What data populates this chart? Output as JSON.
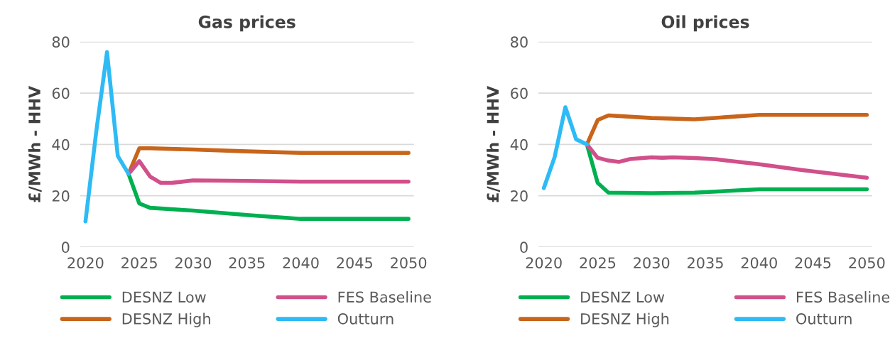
{
  "chart_data": [
    {
      "type": "line",
      "title": "Gas prices",
      "ylabel": "£/MWh - HHV",
      "xlim": [
        2019.5,
        2050.5
      ],
      "xticks": [
        2020,
        2025,
        2030,
        2035,
        2040,
        2045,
        2050
      ],
      "ylim": [
        0,
        80
      ],
      "yticks": [
        0,
        20,
        40,
        60,
        80
      ],
      "grid": "y",
      "legend": "bottom",
      "series": [
        {
          "name": "DESNZ Low",
          "color": "#00b050",
          "x": [
            2024,
            2025,
            2026,
            2030,
            2035,
            2040,
            2050
          ],
          "values": [
            28.5,
            17,
            15.3,
            14.2,
            12.5,
            11,
            11
          ]
        },
        {
          "name": "DESNZ High",
          "color": "#c8651b",
          "x": [
            2024,
            2025,
            2026,
            2030,
            2035,
            2040,
            2050
          ],
          "values": [
            28.5,
            38.5,
            38.5,
            38,
            37.3,
            36.7,
            36.7
          ]
        },
        {
          "name": "FES Baseline",
          "color": "#d1508a",
          "x": [
            2024,
            2025,
            2026,
            2027,
            2028,
            2030,
            2035,
            2040,
            2050
          ],
          "values": [
            28.5,
            33.5,
            27.5,
            25,
            25,
            26,
            25.8,
            25.5,
            25.5
          ]
        },
        {
          "name": "Outturn",
          "color": "#2ebbf5",
          "x": [
            2020,
            2021,
            2022,
            2023,
            2024
          ],
          "values": [
            10,
            45,
            76,
            35.5,
            28.5
          ]
        }
      ]
    },
    {
      "type": "line",
      "title": "Oil prices",
      "ylabel": "£/MWh - HHV",
      "xlim": [
        2019.5,
        2050.5
      ],
      "xticks": [
        2020,
        2025,
        2030,
        2035,
        2040,
        2045,
        2050
      ],
      "ylim": [
        0,
        80
      ],
      "yticks": [
        0,
        20,
        40,
        60,
        80
      ],
      "grid": "y",
      "legend": "bottom",
      "series": [
        {
          "name": "DESNZ Low",
          "color": "#00b050",
          "x": [
            2024,
            2025,
            2026,
            2030,
            2034,
            2040,
            2050
          ],
          "values": [
            40,
            25,
            21.2,
            21,
            21.2,
            22.5,
            22.5
          ]
        },
        {
          "name": "DESNZ High",
          "color": "#c8651b",
          "x": [
            2024,
            2025,
            2026,
            2030,
            2034,
            2040,
            2050
          ],
          "values": [
            40,
            49.5,
            51.3,
            50.3,
            49.8,
            51.5,
            51.5
          ]
        },
        {
          "name": "FES Baseline",
          "color": "#d1508a",
          "x": [
            2024,
            2025,
            2026,
            2027,
            2028,
            2030,
            2031,
            2032,
            2034,
            2036,
            2040,
            2044,
            2050
          ],
          "values": [
            40,
            34.8,
            33.7,
            33.2,
            34.3,
            35,
            34.8,
            35,
            34.7,
            34.2,
            32.3,
            30,
            27
          ]
        },
        {
          "name": "Outturn",
          "color": "#2ebbf5",
          "x": [
            2020,
            2021,
            2022,
            2023,
            2024
          ],
          "values": [
            23,
            35,
            54.5,
            42,
            40
          ]
        }
      ]
    }
  ]
}
